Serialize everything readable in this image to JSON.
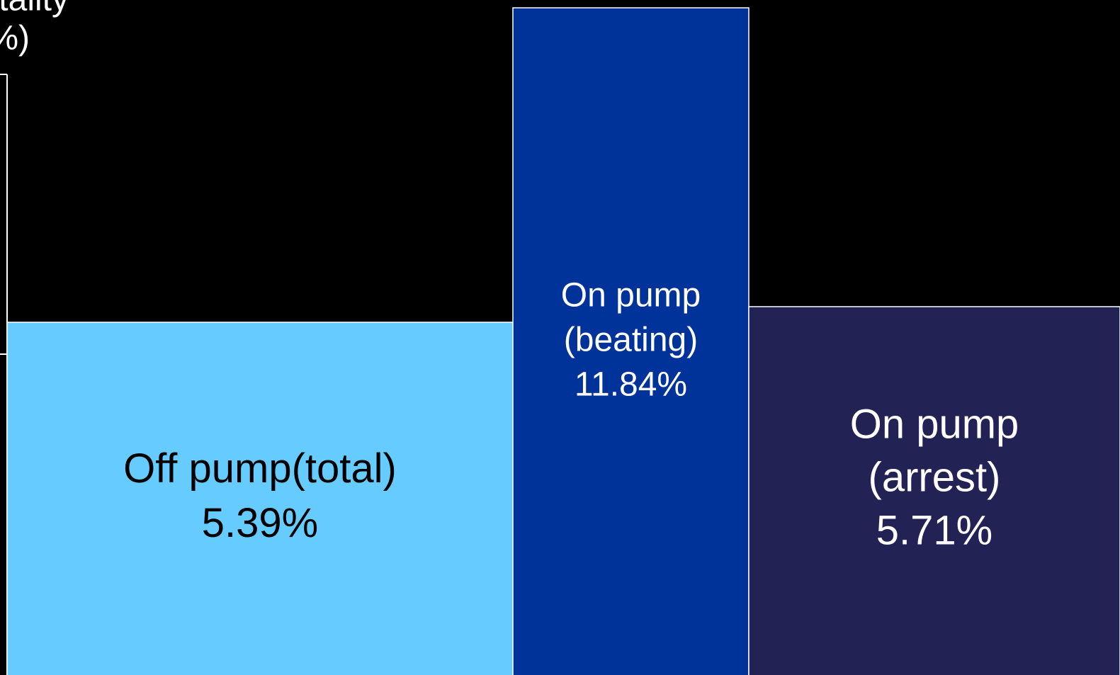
{
  "chart_data": {
    "type": "bar",
    "ylabel": [
      "Mortality",
      "(%)"
    ],
    "categories": [
      [
        "Off pump(total)"
      ],
      [
        "On pump",
        "(beating)"
      ],
      [
        "On pump",
        "(arrest)"
      ]
    ],
    "values": [
      5.39,
      11.84,
      5.71
    ],
    "value_labels": [
      "5.39%",
      "11.84%",
      "5.71%"
    ],
    "colors": [
      "#66ccff",
      "#003399",
      "#222255"
    ],
    "label_colors": [
      "#000000",
      "#ffffff",
      "#ffffff"
    ],
    "ylim": [
      0,
      12
    ]
  }
}
